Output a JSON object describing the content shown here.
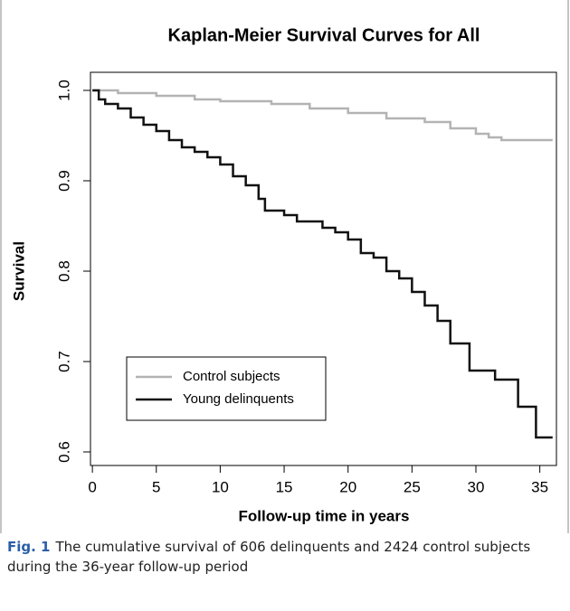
{
  "chart_data": {
    "type": "step",
    "title": "Kaplan-Meier Survival Curves for All",
    "x_label": "Follow-up time in years",
    "y_label": "Survival",
    "caption_label": "Fig. 1",
    "caption": "The cumulative survival of 606 delinquents and 2424 control subjects during the 36-year follow-up period",
    "xlim": [
      -0.15,
      36.3
    ],
    "ylim": [
      0.585,
      1.02
    ],
    "xticks": [
      0,
      5,
      10,
      15,
      20,
      25,
      30,
      35
    ],
    "yticks": [
      {
        "value": 1,
        "label": "1.0"
      },
      0.9,
      0.8,
      0.7,
      0.6
    ],
    "legend": "bottom-left",
    "series": [
      {
        "name": "Control subjects",
        "color": "#b3b3b3",
        "x": [
          0,
          2,
          5,
          8,
          10,
          14,
          17,
          20,
          23,
          26,
          28,
          30,
          31,
          32,
          36
        ],
        "values": [
          1.0,
          0.997,
          0.994,
          0.99,
          0.988,
          0.985,
          0.98,
          0.975,
          0.969,
          0.965,
          0.958,
          0.952,
          0.948,
          0.945,
          0.945
        ]
      },
      {
        "name": "Young delinquents",
        "color": "#111111",
        "x": [
          0,
          0.5,
          1,
          2,
          3,
          4,
          5,
          6,
          7,
          8,
          9,
          10,
          11,
          12,
          13,
          13.5,
          15,
          16,
          18,
          19,
          20,
          21,
          22,
          23,
          24,
          25,
          26,
          27,
          28,
          29.5,
          31.5,
          33.3,
          34.7,
          36
        ],
        "values": [
          1.0,
          0.99,
          0.985,
          0.98,
          0.97,
          0.962,
          0.955,
          0.945,
          0.937,
          0.932,
          0.926,
          0.918,
          0.905,
          0.895,
          0.88,
          0.867,
          0.862,
          0.855,
          0.848,
          0.843,
          0.835,
          0.82,
          0.815,
          0.8,
          0.792,
          0.777,
          0.762,
          0.745,
          0.72,
          0.69,
          0.68,
          0.65,
          0.616,
          0.616
        ]
      }
    ]
  }
}
